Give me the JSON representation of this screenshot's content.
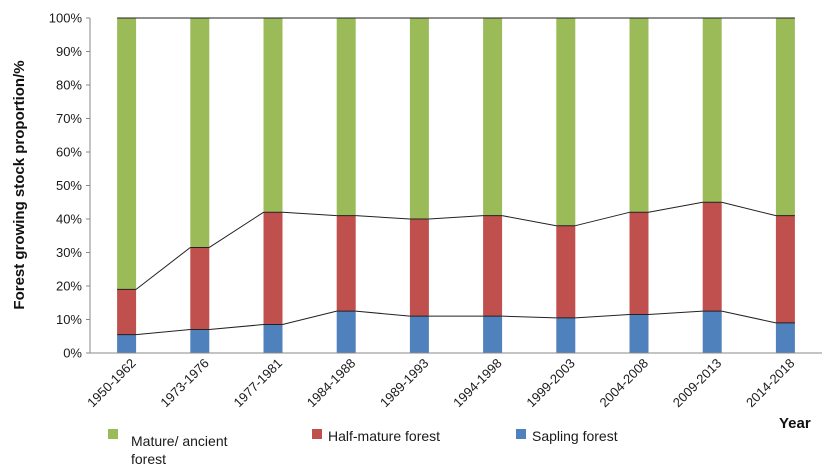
{
  "chart_data": {
    "type": "bar",
    "stacked": true,
    "categories": [
      "1950-1962",
      "1973-1976",
      "1977-1981",
      "1984-1988",
      "1989-1993",
      "1994-1998",
      "1999-2003",
      "2004-2008",
      "2009-2013",
      "2014-2018"
    ],
    "series": [
      {
        "name": "Sapling forest",
        "color": "#4f81bd",
        "values": [
          5.5,
          7,
          8.5,
          12.5,
          11,
          11,
          10.5,
          11.5,
          12.5,
          9
        ]
      },
      {
        "name": "Half-mature forest",
        "color": "#c0504d",
        "values": [
          13.5,
          24.5,
          33.5,
          28.5,
          29,
          30,
          27.5,
          30.5,
          32.5,
          32
        ]
      },
      {
        "name": "Mature/ ancient forest",
        "color": "#9bbb59",
        "values": [
          81,
          68.5,
          58,
          59,
          60,
          59,
          62,
          58,
          55,
          59
        ]
      }
    ],
    "connector_lines": true,
    "ylabel": "Forest growing stock proportion/%",
    "xlabel": "Year",
    "ylim": [
      0,
      100
    ],
    "yticks": [
      "0%",
      "10%",
      "20%",
      "30%",
      "40%",
      "50%",
      "60%",
      "70%",
      "80%",
      "90%",
      "100%"
    ],
    "grid": false,
    "legend_position": "bottom"
  }
}
